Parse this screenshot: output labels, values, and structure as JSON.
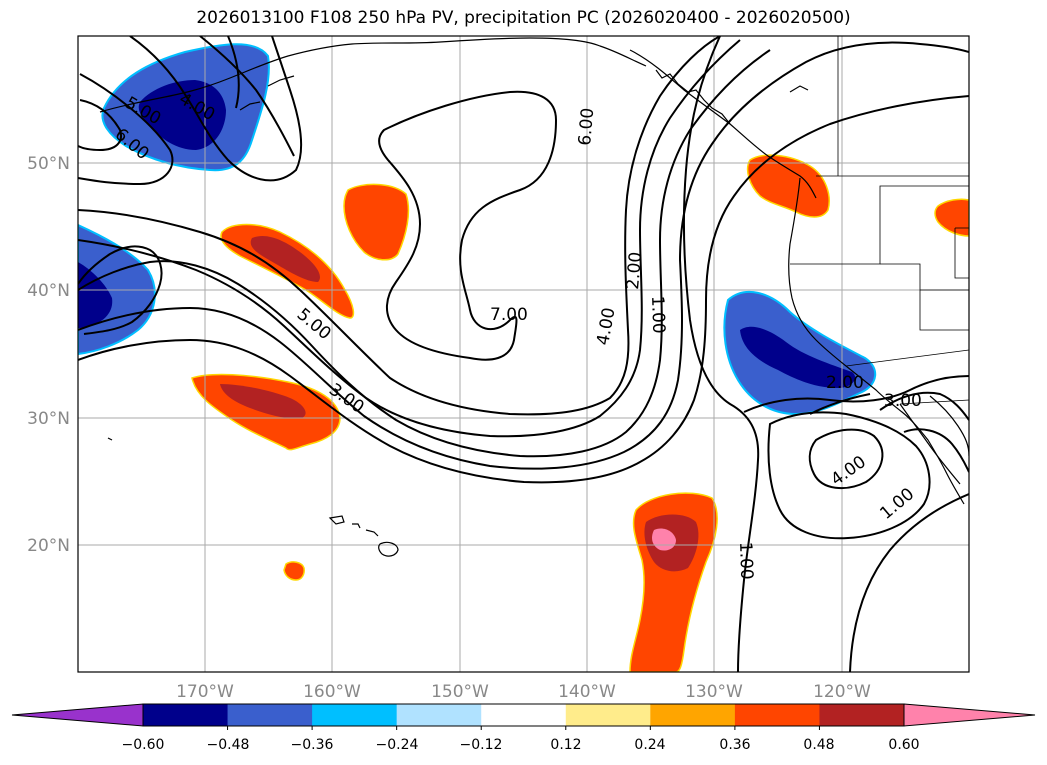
{
  "title": "2026013100 F108 250 hPa PV, precipitation PC (2026020400 - 2026020500)",
  "map": {
    "lat_labels": [
      "50°N",
      "40°N",
      "30°N",
      "20°N"
    ],
    "lon_labels": [
      "170°W",
      "160°W",
      "150°W",
      "140°W",
      "130°W",
      "120°W"
    ],
    "grid_lines": true
  },
  "pv_contour_labels": [
    "5.00",
    "4.00",
    "6.00",
    "5.00",
    "3.00",
    "7.00",
    "6.00",
    "4.00",
    "2.00",
    "1.00",
    "1.00",
    "2.00",
    "3.00",
    "4.00",
    "1.00"
  ],
  "colorbar": {
    "tick_labels": [
      "−0.60",
      "−0.48",
      "−0.36",
      "−0.24",
      "−0.12",
      "0.12",
      "0.24",
      "0.36",
      "0.48",
      "0.60"
    ],
    "colors": [
      "#9932CC",
      "#00008B",
      "#3A5FCD",
      "#00BFFF",
      "#B0E2FF",
      "#FFFFFF",
      "#FFEC8B",
      "#FFA500",
      "#FF4500",
      "#B22222",
      "#FF82AB"
    ]
  }
}
